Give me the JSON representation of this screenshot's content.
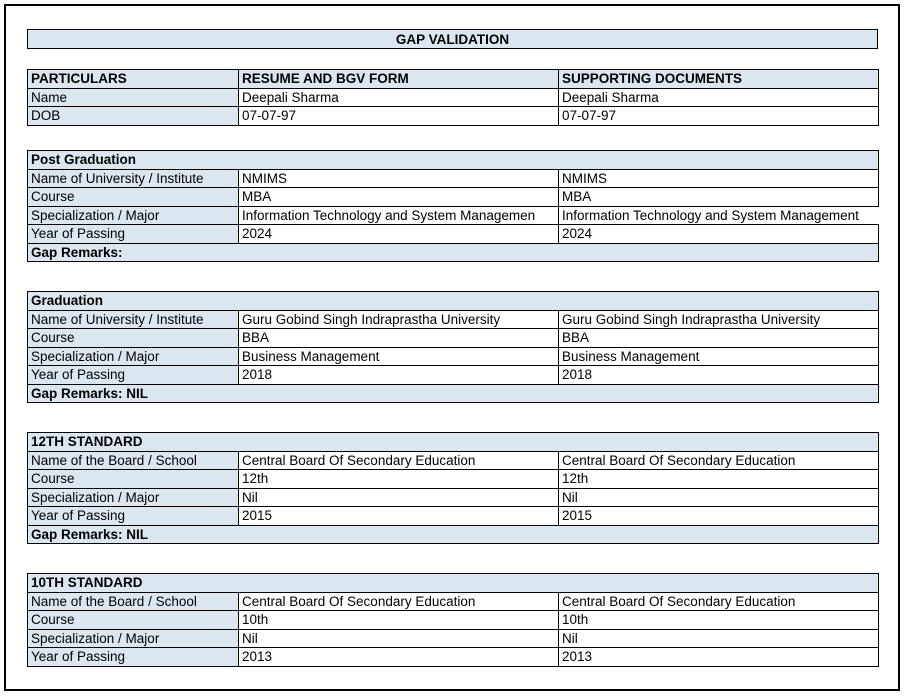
{
  "banner": {
    "title": "GAP VALIDATION"
  },
  "header": {
    "particulars": "PARTICULARS",
    "resume": "RESUME AND BGV FORM",
    "supporting": "SUPPORTING DOCUMENTS"
  },
  "identity": {
    "rows": [
      {
        "label": "Name",
        "resume": "Deepali Sharma",
        "supporting": "Deepali Sharma"
      },
      {
        "label": "DOB",
        "resume": "07-07-97",
        "supporting": "07-07-97"
      }
    ]
  },
  "sections": [
    {
      "heading": "Post Graduation",
      "rows": [
        {
          "label": "Name of University / Institute",
          "resume": "NMIMS",
          "supporting": "NMIMS"
        },
        {
          "label": "Course",
          "resume": "MBA",
          "supporting": "MBA"
        },
        {
          "label": "Specialization / Major",
          "resume": "Information Technology and System Managemen",
          "supporting": "Information Technology and System Management"
        },
        {
          "label": "Year of Passing",
          "resume": "2024",
          "supporting": "2024"
        }
      ],
      "gap_remarks": "Gap Remarks:"
    },
    {
      "heading": "Graduation",
      "rows": [
        {
          "label": "Name of University / Institute",
          "resume": "Guru Gobind Singh Indraprastha University",
          "supporting": "Guru Gobind Singh Indraprastha University"
        },
        {
          "label": "Course",
          "resume": "BBA",
          "supporting": "BBA"
        },
        {
          "label": "Specialization / Major",
          "resume": "Business Management",
          "supporting": "Business Management"
        },
        {
          "label": "Year of Passing",
          "resume": "2018",
          "supporting": "2018"
        }
      ],
      "gap_remarks": "Gap Remarks: NIL"
    },
    {
      "heading": "12TH STANDARD",
      "rows": [
        {
          "label": "Name of the Board / School",
          "resume": "Central Board Of Secondary Education",
          "supporting": "Central Board Of Secondary Education"
        },
        {
          "label": "Course",
          "resume": "12th",
          "supporting": "12th"
        },
        {
          "label": "Specialization / Major",
          "resume": "Nil",
          "supporting": "Nil"
        },
        {
          "label": "Year of Passing",
          "resume": "2015",
          "supporting": "2015"
        }
      ],
      "gap_remarks": "Gap Remarks: NIL"
    },
    {
      "heading": "10TH STANDARD",
      "rows": [
        {
          "label": "Name of the Board / School",
          "resume": "Central Board Of Secondary Education",
          "supporting": "Central Board Of Secondary Education"
        },
        {
          "label": "Course",
          "resume": "10th",
          "supporting": "10th"
        },
        {
          "label": "Specialization / Major",
          "resume": "Nil",
          "supporting": "Nil"
        },
        {
          "label": "Year of Passing",
          "resume": "2013",
          "supporting": "2013"
        }
      ]
    }
  ],
  "colors": {
    "fill": "#DCE6F1",
    "border": "#000000"
  }
}
